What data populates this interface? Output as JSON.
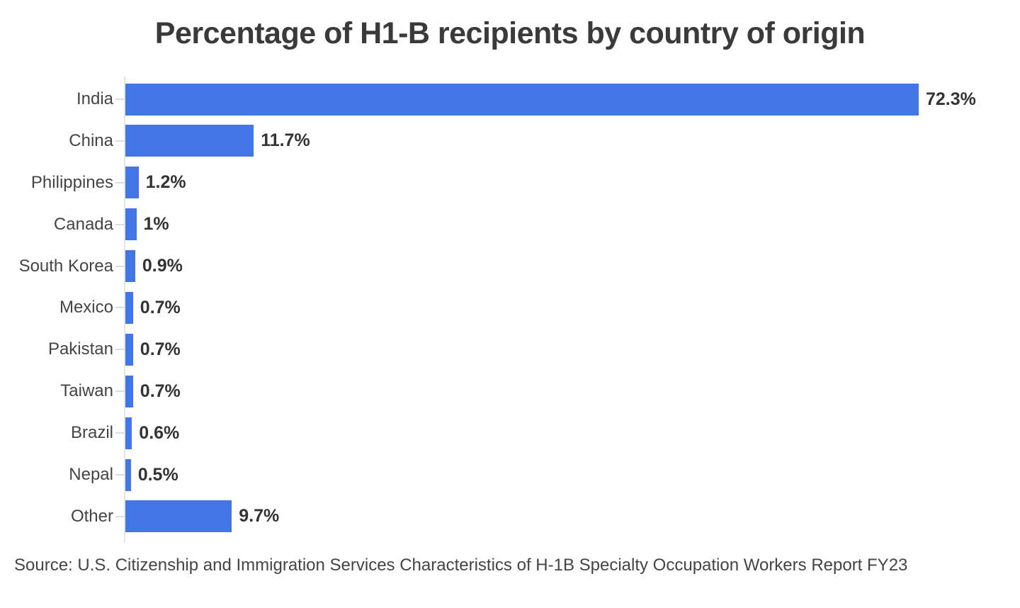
{
  "title": "Percentage of H1-B recipients by country of origin",
  "source": "Source: U.S. Citizenship and Immigration Services Characteristics of H-1B Specialty Occupation Workers Report FY23",
  "colors": {
    "bar": "#4276e4",
    "title": "#3a3a3a",
    "label": "#444444",
    "value": "#333333",
    "axis": "#e4e4e4",
    "tick": "#dcdcdc",
    "background": "#ffffff"
  },
  "chart_data": {
    "type": "bar",
    "orientation": "horizontal",
    "title": "Percentage of H1-B recipients by country of origin",
    "xlabel": "",
    "ylabel": "",
    "categories": [
      "India",
      "China",
      "Philippines",
      "Canada",
      "South Korea",
      "Mexico",
      "Pakistan",
      "Taiwan",
      "Brazil",
      "Nepal",
      "Other"
    ],
    "values": [
      72.3,
      11.7,
      1.2,
      1,
      0.9,
      0.7,
      0.7,
      0.7,
      0.6,
      0.5,
      9.7
    ],
    "value_labels": [
      "72.3%",
      "11.7%",
      "1.2%",
      "1%",
      "0.9%",
      "0.7%",
      "0.7%",
      "0.7%",
      "0.6%",
      "0.5%",
      "9.7%"
    ],
    "xlim": [
      0,
      72.3
    ],
    "grid": false,
    "legend": false,
    "bar_label_position": "outside-end",
    "source_note": "Source: U.S. Citizenship and Immigration Services Characteristics of H-1B Specialty Occupation Workers Report FY23"
  }
}
